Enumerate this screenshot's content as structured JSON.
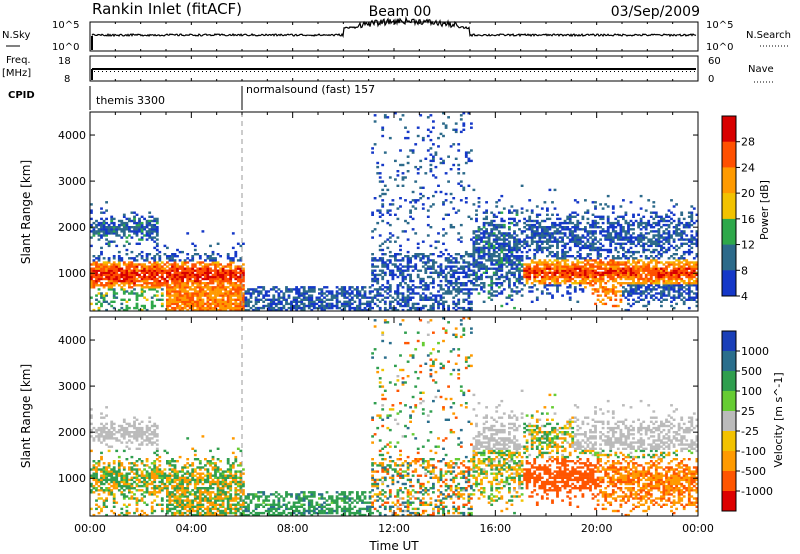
{
  "header": {
    "station_title": "Rankin Inlet (fitACF)",
    "beam_label": "Beam 00",
    "date_label": "03/Sep/2009"
  },
  "panels": {
    "nsky": {
      "label": "N.Sky",
      "tick_top": "10^5",
      "tick_bottom": "10^0",
      "right_label": "N.Search"
    },
    "freq": {
      "label_line1": "Freq.",
      "label_line2": "[MHz]",
      "tick_top": "18",
      "tick_bottom": "8",
      "right_tick_top": "60",
      "right_tick_bottom": "0",
      "right_label": "Nave"
    },
    "cpid": {
      "label": "CPID",
      "segments": [
        {
          "start_hour": 0,
          "text": "themis 3300"
        },
        {
          "start_hour": 6,
          "text": "normalsound (fast) 157"
        }
      ]
    }
  },
  "chart_data": [
    {
      "type": "heatmap",
      "title": "",
      "ylabel": "Slant Range [km]",
      "xlabel": "",
      "xlim": [
        0,
        24
      ],
      "ylim": [
        180,
        4500
      ],
      "x_ticks": [
        "00:00",
        "04:00",
        "08:00",
        "12:00",
        "16:00",
        "20:00",
        "00:00"
      ],
      "y_ticks": [
        1000,
        2000,
        3000,
        4000
      ],
      "colorbar": {
        "label": "Power [dB]",
        "ticks": [
          28,
          24,
          20,
          16,
          12,
          8,
          4
        ],
        "colors": [
          "#d80000",
          "#ff5000",
          "#ff9a00",
          "#f2c200",
          "#2ea84a",
          "#2c6a8a",
          "#1538c8"
        ]
      }
    },
    {
      "type": "heatmap",
      "title": "",
      "ylabel": "Slant Range [km]",
      "xlabel": "Time UT",
      "xlim": [
        0,
        24
      ],
      "ylim": [
        180,
        4500
      ],
      "x_ticks": [
        "00:00",
        "04:00",
        "08:00",
        "12:00",
        "16:00",
        "20:00",
        "00:00"
      ],
      "y_ticks": [
        1000,
        2000,
        3000,
        4000
      ],
      "colorbar": {
        "label": "Velocity [m s^-1]",
        "ticks": [
          1000,
          500,
          100,
          25,
          -25,
          -100,
          -500,
          -1000
        ],
        "colors": [
          "#1a3fb8",
          "#2a6e8c",
          "#2f9e4e",
          "#66cc33",
          "#bbbbbb",
          "#f2c200",
          "#ff9a00",
          "#ff5500",
          "#dd0000"
        ]
      }
    }
  ],
  "style": {
    "axis_color": "#000000",
    "gs_color": "#bbbbbb"
  }
}
